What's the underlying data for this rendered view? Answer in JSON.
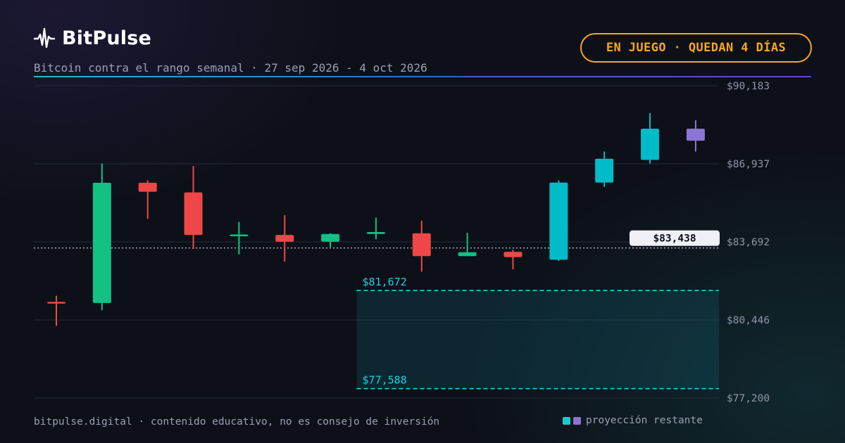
{
  "brand": {
    "name": "BitPulse",
    "icon": "pulse-icon"
  },
  "subtitle": "Bitcoin contra el rango semanal · 27 sep 2026 - 4 oct 2026",
  "status_badge": "EN JUEGO · QUEDAN 4 DÍAS",
  "footer": {
    "note": "bitpulse.digital · contenido educativo, no es consejo de inversión"
  },
  "legend": {
    "label": "proyección restante",
    "colors": [
      "#1ec8d2",
      "#8a74d0"
    ]
  },
  "colors": {
    "up": "#12c184",
    "down": "#ef4747",
    "projection": "#00bcc8",
    "projection_last": "#8c74d2",
    "accent": "#f5a623",
    "range": "#19d2e6"
  },
  "chart_data": {
    "type": "candlestick",
    "title": "Bitcoin contra el rango semanal",
    "ylim": [
      77200,
      90183
    ],
    "yticks": [
      "$90,183",
      "$86,937",
      "$83,692",
      "$80,446",
      "$77,200"
    ],
    "ytick_values": [
      90183,
      86937,
      83692,
      80446,
      77200
    ],
    "grid": true,
    "current_price": {
      "value": 83438,
      "label": "$83,438"
    },
    "range": {
      "upper": {
        "value": 81672,
        "label": "$81,672"
      },
      "lower": {
        "value": 77588,
        "label": "$77,588"
      }
    },
    "candles": [
      {
        "o": 81200,
        "h": 81450,
        "l": 80200,
        "c": 81150,
        "kind": "down"
      },
      {
        "o": 81150,
        "h": 86950,
        "l": 80850,
        "c": 86150,
        "kind": "up"
      },
      {
        "o": 86150,
        "h": 86250,
        "l": 84650,
        "c": 85780,
        "kind": "down"
      },
      {
        "o": 85750,
        "h": 86850,
        "l": 83400,
        "c": 83980,
        "kind": "down"
      },
      {
        "o": 83940,
        "h": 84520,
        "l": 83170,
        "c": 84000,
        "kind": "up"
      },
      {
        "o": 83980,
        "h": 84800,
        "l": 82870,
        "c": 83700,
        "kind": "down"
      },
      {
        "o": 83700,
        "h": 84050,
        "l": 83470,
        "c": 84020,
        "kind": "up"
      },
      {
        "o": 84020,
        "h": 84700,
        "l": 83800,
        "c": 84100,
        "kind": "up"
      },
      {
        "o": 84050,
        "h": 84570,
        "l": 82450,
        "c": 83100,
        "kind": "down"
      },
      {
        "o": 83100,
        "h": 84070,
        "l": 83120,
        "c": 83260,
        "kind": "up"
      },
      {
        "o": 83280,
        "h": 83360,
        "l": 82550,
        "c": 83060,
        "kind": "down"
      },
      {
        "o": 82950,
        "h": 86250,
        "l": 82900,
        "c": 86160,
        "kind": "projection"
      },
      {
        "o": 86160,
        "h": 87450,
        "l": 85980,
        "c": 87150,
        "kind": "projection"
      },
      {
        "o": 87100,
        "h": 89050,
        "l": 86950,
        "c": 88400,
        "kind": "projection"
      },
      {
        "o": 87900,
        "h": 88750,
        "l": 87450,
        "c": 88400,
        "kind": "projection_last"
      }
    ]
  }
}
